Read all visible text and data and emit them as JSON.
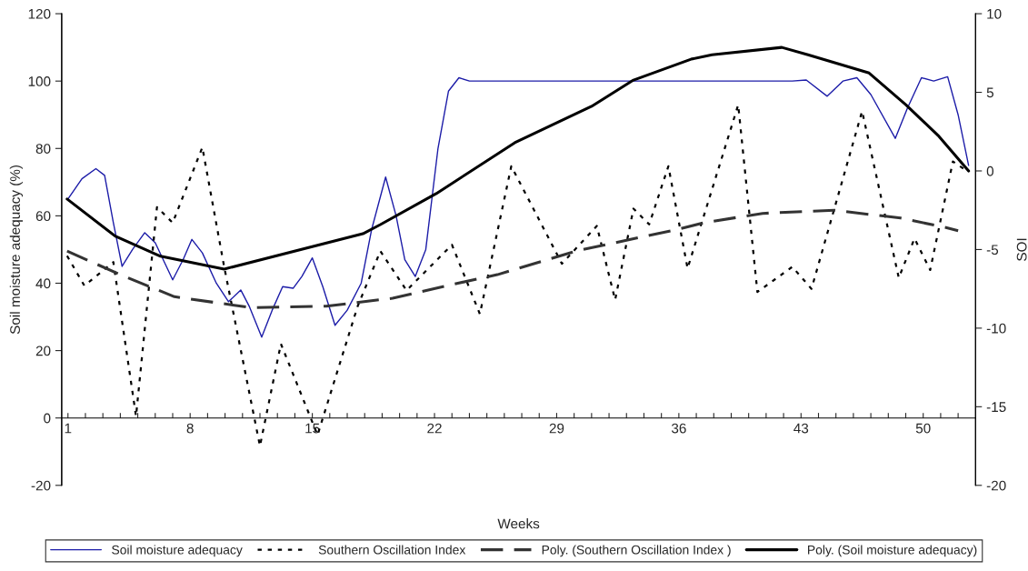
{
  "chart_data": {
    "type": "line",
    "xlabel": "Weeks",
    "ylabel": "Soil moisture adequacy (%)",
    "y2label": "SOI",
    "xlim": [
      0.64,
      53
    ],
    "xticks": [
      1,
      {
        "value": 2,
        "label": null
      },
      {
        "value": 3,
        "label": null
      },
      {
        "value": 4,
        "label": null
      },
      {
        "value": 5,
        "label": null
      },
      {
        "value": 6,
        "label": null
      },
      {
        "value": 7,
        "label": null
      },
      8,
      {
        "value": 9,
        "label": null
      },
      {
        "value": 10,
        "label": null
      },
      {
        "value": 11,
        "label": null
      },
      {
        "value": 12,
        "label": null
      },
      {
        "value": 13,
        "label": null
      },
      {
        "value": 14,
        "label": null
      },
      15,
      {
        "value": 16,
        "label": null
      },
      {
        "value": 17,
        "label": null
      },
      {
        "value": 18,
        "label": null
      },
      {
        "value": 19,
        "label": null
      },
      {
        "value": 20,
        "label": null
      },
      {
        "value": 21,
        "label": null
      },
      22,
      {
        "value": 23,
        "label": null
      },
      {
        "value": 24,
        "label": null
      },
      {
        "value": 25,
        "label": null
      },
      {
        "value": 26,
        "label": null
      },
      {
        "value": 27,
        "label": null
      },
      {
        "value": 28,
        "label": null
      },
      29,
      {
        "value": 30,
        "label": null
      },
      {
        "value": 31,
        "label": null
      },
      {
        "value": 32,
        "label": null
      },
      {
        "value": 33,
        "label": null
      },
      {
        "value": 34,
        "label": null
      },
      {
        "value": 35,
        "label": null
      },
      36,
      {
        "value": 37,
        "label": null
      },
      {
        "value": 38,
        "label": null
      },
      {
        "value": 39,
        "label": null
      },
      {
        "value": 40,
        "label": null
      },
      {
        "value": 41,
        "label": null
      },
      {
        "value": 42,
        "label": null
      },
      43,
      {
        "value": 44,
        "label": null
      },
      {
        "value": 45,
        "label": null
      },
      {
        "value": 46,
        "label": null
      },
      {
        "value": 47,
        "label": null
      },
      {
        "value": 48,
        "label": null
      },
      {
        "value": 49,
        "label": null
      },
      50,
      {
        "value": 51,
        "label": null
      },
      {
        "value": 52,
        "label": null
      }
    ],
    "ylim": [
      -20,
      120
    ],
    "yticks": [
      -20,
      0,
      20,
      40,
      60,
      80,
      100,
      120
    ],
    "y2lim": [
      -20,
      10
    ],
    "y2ticks": [
      -20,
      -15,
      -10,
      -5,
      0,
      5,
      10
    ],
    "legend": "bottom",
    "grid": false,
    "marker": "none",
    "series": [
      {
        "name": "Soil moisture adequacy",
        "color": "#1c1ca8",
        "line_style": "solid",
        "x": [
          1,
          1.8,
          2.6,
          3.1,
          3.6,
          4.1,
          4.7,
          5.4,
          6.0,
          7.0,
          7.6,
          8.1,
          8.7,
          9.5,
          10.2,
          10.9,
          11.4,
          12.1,
          12.7,
          13.3,
          13.9,
          14.4,
          15.0,
          15.6,
          16.3,
          17.0,
          17.8,
          18.4,
          19.2,
          19.8,
          20.3,
          20.9,
          21.5,
          22.2,
          22.8,
          23.4,
          24.0,
          42.5,
          43.3,
          44.5,
          45.4,
          46.2,
          47.0,
          48.4,
          49.1,
          49.9,
          50.6,
          51.4,
          52.0,
          52.6
        ],
        "values": [
          65,
          71,
          74,
          72,
          58,
          45,
          50,
          55,
          52,
          41,
          47,
          53,
          49,
          40,
          34.5,
          38,
          33,
          24,
          32,
          39,
          38.5,
          42,
          47.5,
          39,
          27.5,
          32,
          40,
          56,
          71.5,
          60,
          47,
          42,
          50,
          80,
          97,
          101,
          100,
          100,
          100.3,
          95.5,
          100,
          101,
          96,
          83,
          92,
          101,
          100,
          101.3,
          90,
          75
        ]
      },
      {
        "name": "Southern Oscillation Index",
        "color": "#000000",
        "line_style": "dotted",
        "axis": "y2",
        "x": [
          0.95,
          1.94,
          3.6,
          4.9,
          6.1,
          7.0,
          8.7,
          9.95,
          12.0,
          13.2,
          15.3,
          17.6,
          18.9,
          20.4,
          23.0,
          24.6,
          26.4,
          29.3,
          31.3,
          32.35,
          33.4,
          34.3,
          35.4,
          36.5,
          39.4,
          40.5,
          42.5,
          43.6,
          46.5,
          48.6,
          49.5,
          50.4,
          51.7,
          52.5
        ],
        "values": [
          -5.4,
          -7.3,
          -5.8,
          -15.6,
          -2.3,
          -3.3,
          1.5,
          -6.1,
          -17.5,
          -11.0,
          -16.8,
          -8.6,
          -5.1,
          -7.6,
          -4.7,
          -9.1,
          0.3,
          -5.9,
          -3.5,
          -8.2,
          -2.4,
          -3.4,
          0.3,
          -6.2,
          4.2,
          -7.7,
          -6.1,
          -7.5,
          3.8,
          -6.8,
          -4.3,
          -6.3,
          0.6,
          0
        ]
      },
      {
        "name": "Poly. (Southern Oscillation Index )",
        "color": "#333333",
        "line_style": "dashed",
        "axis": "y2",
        "x": [
          0.95,
          4.0,
          7.1,
          11.5,
          15.8,
          19.6,
          23.1,
          25.6,
          30.1,
          36.0,
          37.4,
          40.8,
          44.9,
          48.7,
          51.3,
          52.0
        ],
        "values": [
          -5.1,
          -6.6,
          -8.0,
          -8.7,
          -8.6,
          -8.1,
          -7.2,
          -6.6,
          -5.1,
          -3.7,
          -3.3,
          -2.7,
          -2.5,
          -3.0,
          -3.6,
          -3.8
        ]
      },
      {
        "name": "Poly. (Soil moisture adequacy)",
        "color": "#000000",
        "line_style": "solid",
        "x": [
          0.95,
          3.7,
          6.3,
          9.95,
          17.9,
          18.9,
          22.1,
          26.6,
          31.0,
          33.4,
          36.7,
          37.9,
          41.9,
          43.4,
          46.9,
          49.0,
          50.9,
          52.6
        ],
        "values": [
          65,
          54,
          48,
          44.2,
          54.7,
          57.4,
          66.6,
          81.7,
          92.5,
          100.3,
          106.5,
          107.8,
          110,
          107.8,
          102.4,
          93,
          83.6,
          73.3
        ]
      }
    ]
  }
}
